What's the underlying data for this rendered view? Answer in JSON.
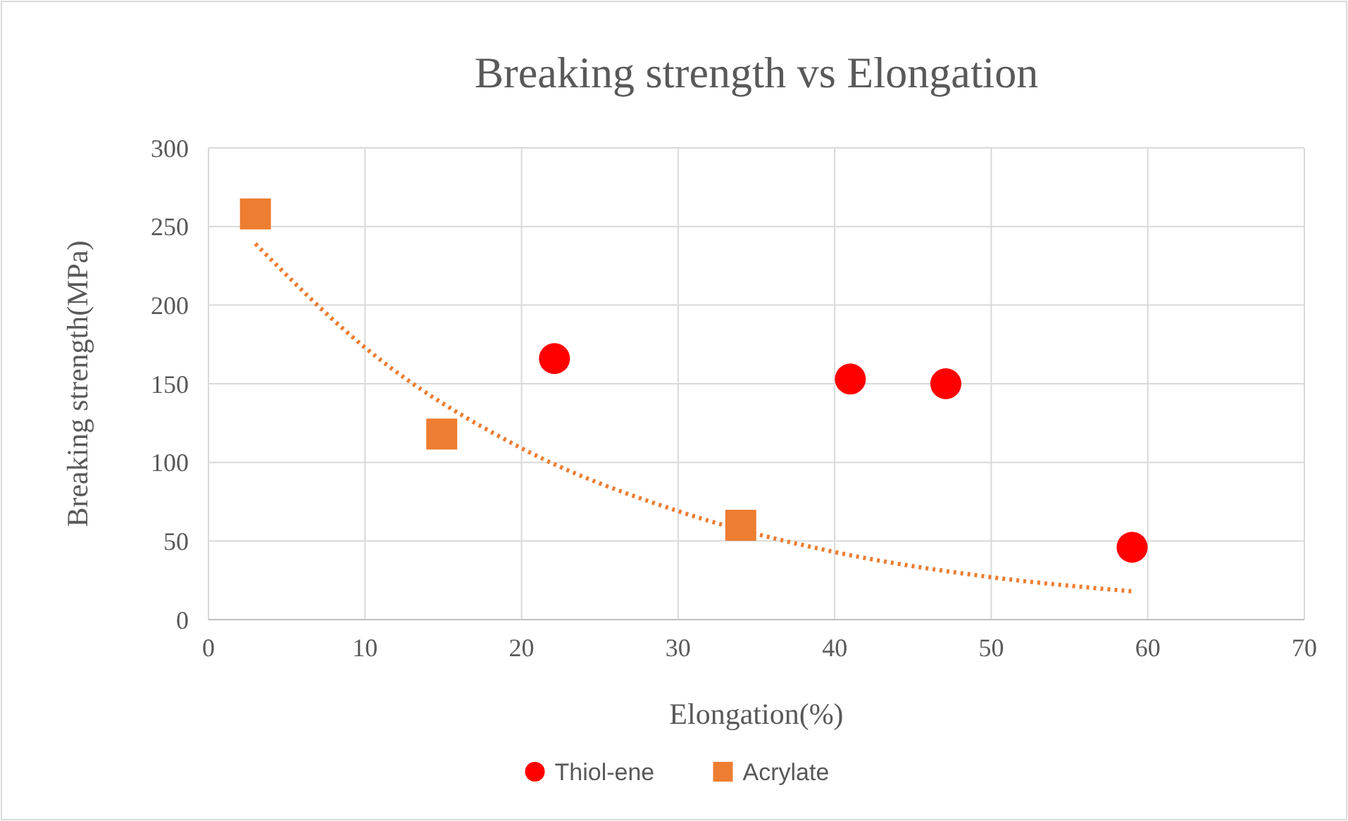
{
  "chart_data": {
    "type": "scatter",
    "title": "Breaking strength vs Elongation",
    "xlabel": "Elongation(%)",
    "ylabel": "Breaking strength(MPa)",
    "xlim": [
      0,
      70
    ],
    "xticks": [
      0,
      10,
      20,
      30,
      40,
      50,
      60,
      70
    ],
    "ylim": [
      0,
      300
    ],
    "yticks": [
      0,
      50,
      100,
      150,
      200,
      250,
      300
    ],
    "grid": true,
    "legend": "bottom",
    "series": [
      {
        "name": "Thiol-ene",
        "color": "#ff0000",
        "marker": "circle",
        "x": [
          22.1,
          41,
          47.1,
          59
        ],
        "values": [
          166,
          153,
          150,
          46
        ]
      },
      {
        "name": "Acrylate",
        "color": "#ed7d31",
        "marker": "square",
        "x": [
          3,
          14.9,
          34
        ],
        "values": [
          258,
          118,
          60
        ]
      },
      {
        "type": "line",
        "color": "#ed7d31",
        "marker": "none",
        "line_style": "dotted",
        "x": [
          3,
          10,
          20,
          30,
          40,
          50,
          59
        ],
        "values": [
          239,
          173,
          109,
          69,
          43,
          27,
          18
        ]
      }
    ]
  }
}
